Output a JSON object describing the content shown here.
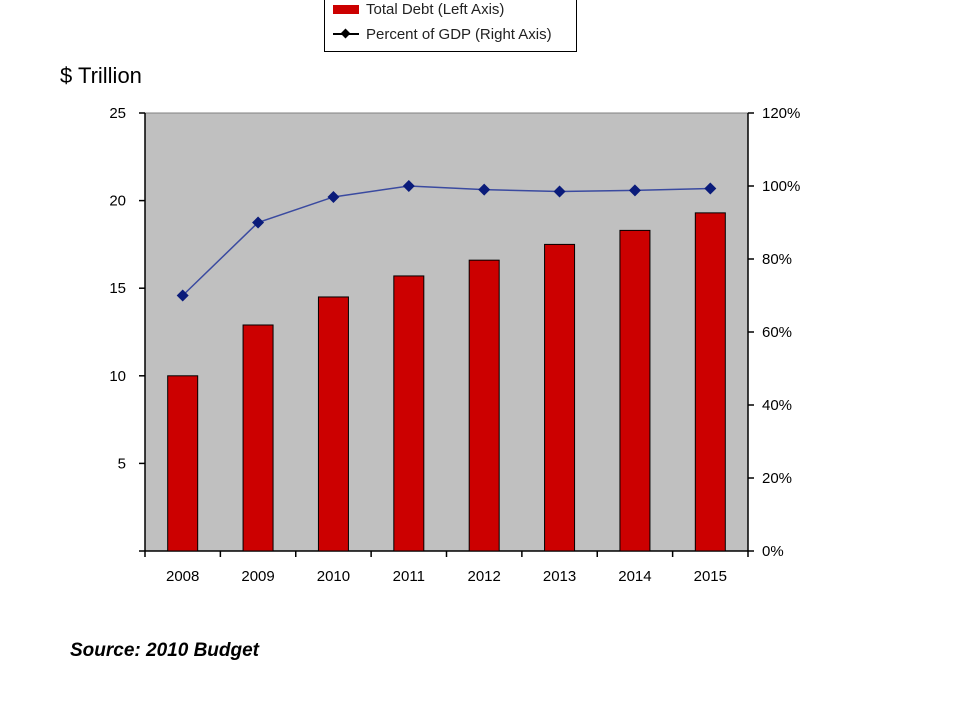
{
  "legend": {
    "bar_label": "Total Debt (Left Axis)",
    "line_label": "Percent of GDP (Right Axis)"
  },
  "y_left_title": "$ Trillion",
  "source": "Source: 2010 Budget",
  "colors": {
    "bar": "#cc0000",
    "line": "#3a4aa0",
    "marker": "#0a1b7a",
    "plot_bg": "#c0c0c0"
  },
  "chart_data": {
    "type": "bar",
    "categories": [
      "2008",
      "2009",
      "2010",
      "2011",
      "2012",
      "2013",
      "2014",
      "2015"
    ],
    "series": [
      {
        "name": "Total Debt (Left Axis)",
        "type": "bar",
        "axis": "left",
        "values": [
          10.0,
          12.9,
          14.5,
          15.7,
          16.6,
          17.5,
          18.3,
          19.3
        ]
      },
      {
        "name": "Percent of GDP (Right Axis)",
        "type": "line",
        "axis": "right",
        "values": [
          70,
          90,
          97,
          100,
          99,
          98.5,
          98.8,
          99.3
        ]
      }
    ],
    "ylim_left": [
      0,
      25
    ],
    "yticks_left": [
      5,
      10,
      15,
      20,
      25
    ],
    "ylim_right": [
      0,
      120
    ],
    "yticks_right": [
      "0%",
      "20%",
      "40%",
      "60%",
      "80%",
      "100%",
      "120%"
    ],
    "grid": false,
    "legend_position": "top-center"
  }
}
